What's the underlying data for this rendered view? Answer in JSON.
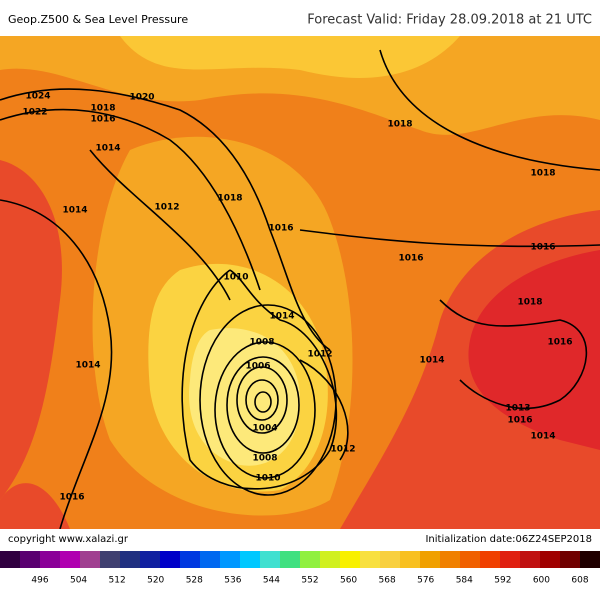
{
  "header": {
    "title": "Geop.Z500 & Sea Level Pressure",
    "forecast": "Forecast Valid:  Friday 28.09.2018 at 21 UTC"
  },
  "footer": {
    "copyright": "copyright www.xalazi.gr",
    "init": "Initialization date:06Z24SEP2018"
  },
  "isobar_labels": [
    "1024",
    "1022",
    "1018",
    "1016",
    "1020",
    "1014",
    "1014",
    "1012",
    "1018",
    "1016",
    "1018",
    "1018",
    "1016",
    "1016",
    "1010",
    "1014",
    "1018",
    "1012",
    "1008",
    "1006",
    "1004",
    "1008",
    "1010",
    "1012",
    "1014",
    "1014",
    "1016",
    "1013",
    "1016",
    "1014",
    "1016"
  ],
  "colorbar": {
    "colors": [
      "#300040",
      "#5a0070",
      "#8a0098",
      "#b000b0",
      "#a04090",
      "#404070",
      "#203080",
      "#1020a0",
      "#0000c8",
      "#0038e0",
      "#0068f0",
      "#0098ff",
      "#00c8ff",
      "#40e0d0",
      "#40e080",
      "#90f040",
      "#d0f020",
      "#f8f000",
      "#f8e040",
      "#f8d040",
      "#f8c020",
      "#f0a000",
      "#f08000",
      "#f06000",
      "#f04000",
      "#e02010",
      "#c01010",
      "#a00000",
      "#700000",
      "#200000"
    ],
    "labels": [
      496,
      504,
      512,
      520,
      528,
      536,
      544,
      552,
      560,
      568,
      576,
      584,
      592,
      600,
      608
    ]
  }
}
